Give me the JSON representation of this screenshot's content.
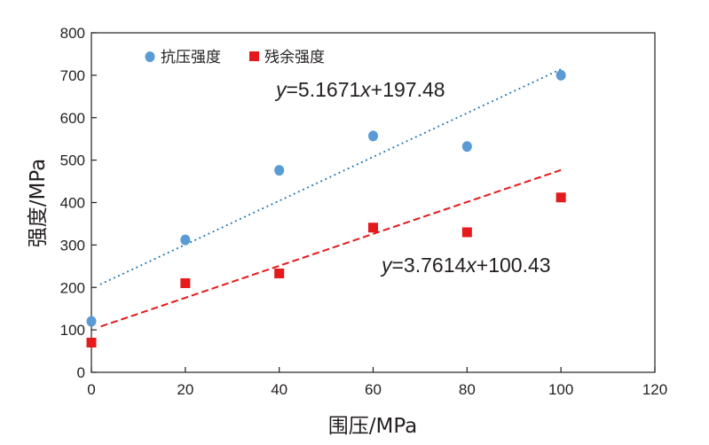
{
  "chart_data": {
    "type": "scatter",
    "title": "",
    "xlabel": "围压/MPa",
    "ylabel": "强度/MPa",
    "xlim": [
      0,
      120
    ],
    "ylim": [
      0,
      800
    ],
    "xticks": [
      0,
      20,
      40,
      60,
      80,
      100,
      120
    ],
    "yticks": [
      0,
      100,
      200,
      300,
      400,
      500,
      600,
      700,
      800
    ],
    "grid": false,
    "legend_position": "top-left",
    "series": [
      {
        "name": "抗压强度",
        "marker": "circle",
        "color": "#5b9bd5",
        "x": [
          0,
          20,
          40,
          60,
          80,
          100
        ],
        "y": [
          120,
          312,
          476,
          557,
          532,
          700
        ],
        "trendline": {
          "style": "dotted",
          "color": "#1f77b4",
          "slope": 5.1671,
          "intercept": 197.48,
          "x_range": [
            2,
            100
          ],
          "equation_parts": [
            "y",
            "=5.1671",
            "x",
            "+197.48"
          ]
        }
      },
      {
        "name": "残余强度",
        "marker": "square",
        "color": "#e41a1c",
        "x": [
          0,
          20,
          40,
          60,
          80,
          100
        ],
        "y": [
          70,
          210,
          233,
          341,
          330,
          412
        ],
        "trendline": {
          "style": "dashed",
          "color": "#e41a1c",
          "slope": 3.7614,
          "intercept": 100.43,
          "x_range": [
            2,
            100
          ],
          "equation_parts": [
            "y",
            "=3.7614",
            "x",
            "+100.43"
          ]
        }
      }
    ]
  }
}
